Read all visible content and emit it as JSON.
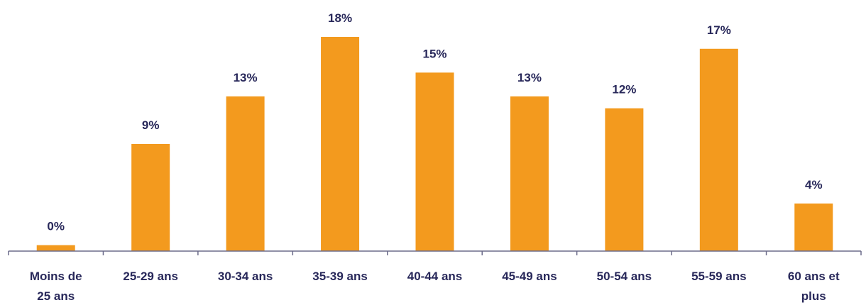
{
  "chart_data": {
    "type": "bar",
    "categories": [
      [
        "Moins de",
        "25 ans"
      ],
      [
        "25-29 ans"
      ],
      [
        "30-34 ans"
      ],
      [
        "35-39 ans"
      ],
      [
        "40-44 ans"
      ],
      [
        "45-49 ans"
      ],
      [
        "50-54 ans"
      ],
      [
        "55-59 ans"
      ],
      [
        "60 ans et",
        "plus"
      ]
    ],
    "values": [
      0.5,
      9,
      13,
      18,
      15,
      13,
      12,
      17,
      4
    ],
    "value_labels": [
      "0%",
      "9%",
      "13%",
      "18%",
      "15%",
      "13%",
      "12%",
      "17%",
      "4%"
    ],
    "title": "",
    "xlabel": "",
    "ylabel": "",
    "ylim": [
      0,
      18
    ],
    "grid": false,
    "legend": "none",
    "bar_color": "#f39a1e",
    "text_color": "#28285a",
    "axis_color": "#6b6b8a"
  }
}
